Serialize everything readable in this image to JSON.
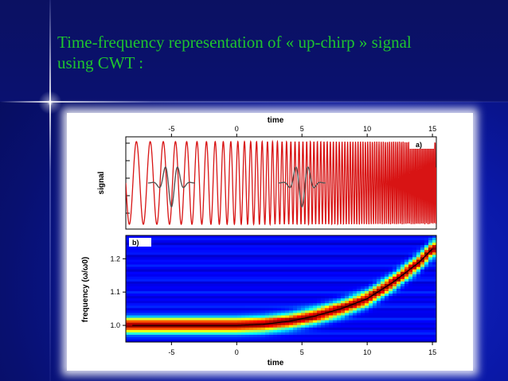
{
  "slide": {
    "title_line1": "Time-frequency representation of « up-chirp » signal",
    "title_line2": "using CWT :"
  },
  "colors": {
    "title": "#1ec42f",
    "background": "#0a18a8",
    "signal": "#d81414",
    "wavelet": "#555555",
    "ridge": "#000000"
  },
  "chart_data": [
    {
      "type": "line",
      "panel_label": "a)",
      "xlabel": "time",
      "ylabel": "signal",
      "xlim": [
        -8.5,
        15.3
      ],
      "x_ticks": [
        "-5",
        "0",
        "5",
        "10",
        "15"
      ],
      "series": [
        {
          "style": "up-chirp signal",
          "color": "#d81414",
          "frequency_ratio_start": 1.0,
          "frequency_ratio_end": 1.24
        },
        {
          "style": "wavelet",
          "color": "#555555",
          "centers": [
            -5,
            5
          ]
        }
      ]
    },
    {
      "type": "heatmap",
      "panel_label": "b)",
      "xlabel": "time",
      "ylabel": "frequency (ω/ω0)",
      "xlim": [
        -8.5,
        15.3
      ],
      "ylim": [
        0.95,
        1.27
      ],
      "x_ticks": [
        "-5",
        "0",
        "5",
        "10",
        "15"
      ],
      "y_ticks": [
        "1.0",
        "1.1",
        "1.2"
      ],
      "ridge": {
        "x": [
          -8,
          -5,
          0,
          2,
          4,
          6,
          8,
          10,
          12,
          14,
          15
        ],
        "y": [
          1.0,
          1.0,
          1.0,
          1.003,
          1.012,
          1.028,
          1.05,
          1.08,
          1.13,
          1.19,
          1.23
        ]
      }
    }
  ]
}
